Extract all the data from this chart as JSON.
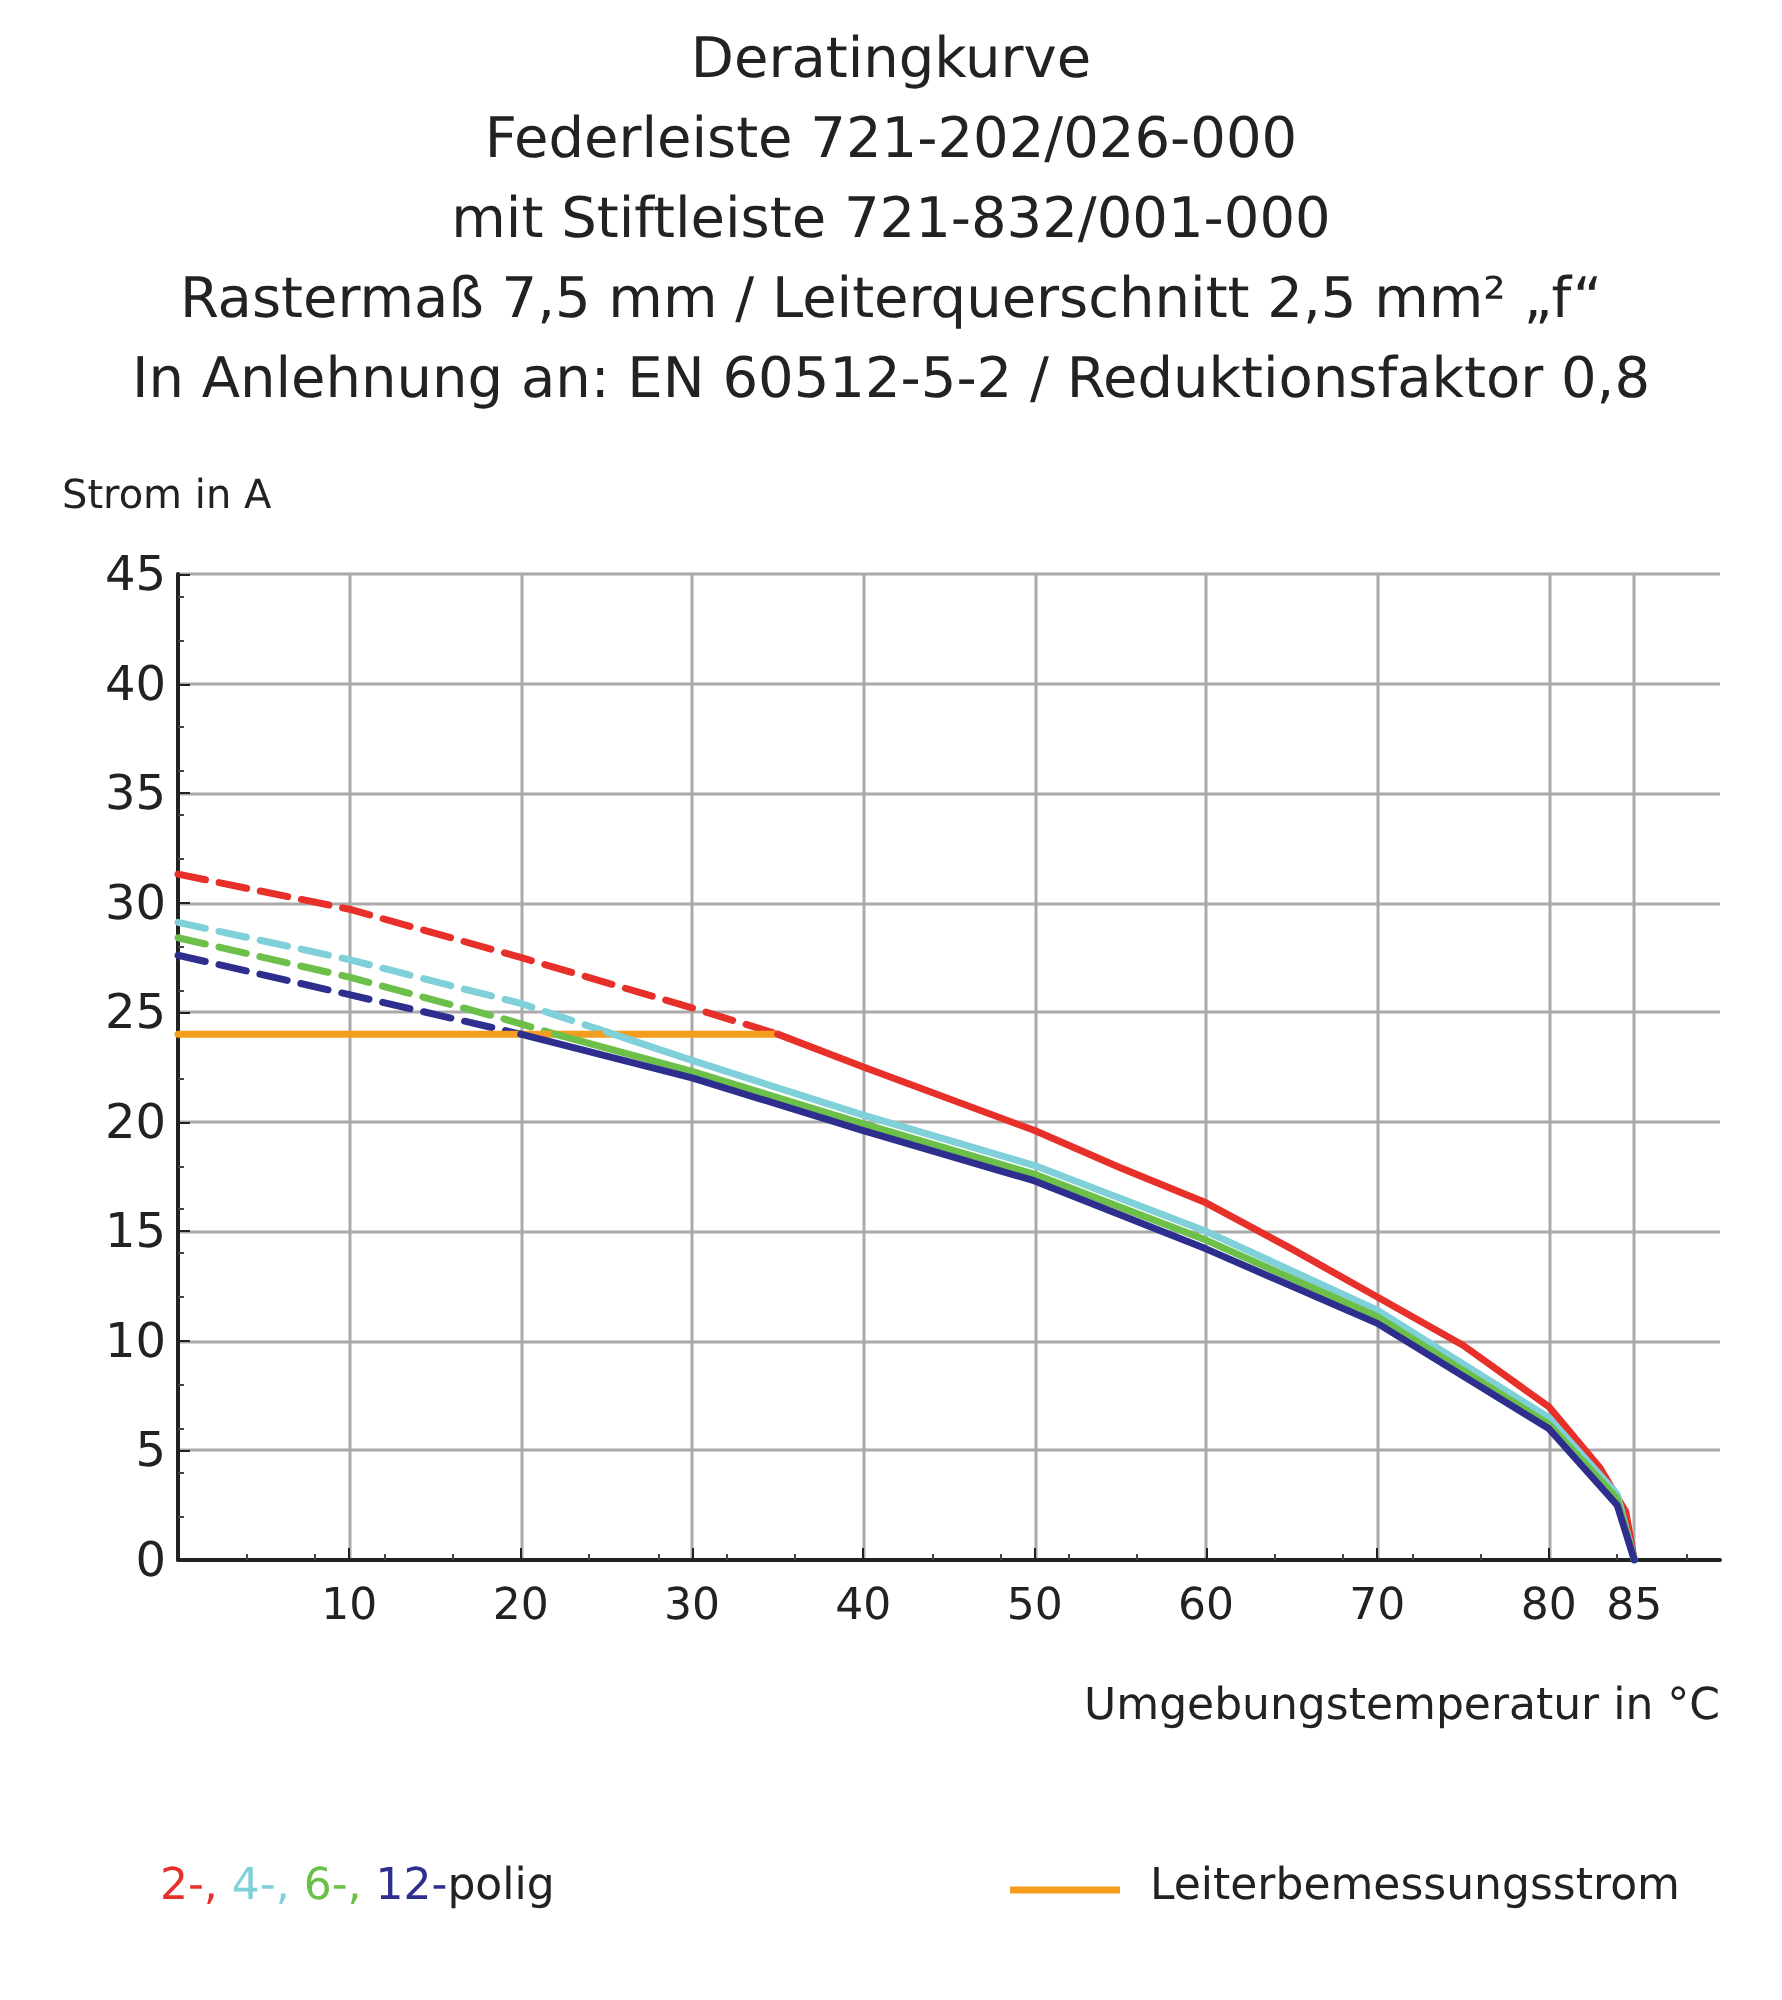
{
  "chart_data": {
    "type": "line",
    "title": "Deratingkurve\nFederleiste 721-202/026-000\nmit Stiftleiste 721-832/001-000\nRastermaß 7,5 mm / Leiterquerschnitt 2,5 mm² „f“\nIn Anlehnung an: EN 60512-5-2 / Reduktionsfaktor 0,8",
    "xlabel": "Umgebungstemperatur in °C",
    "ylabel": "Strom in A",
    "legend_title": "polig",
    "xlim": [
      0,
      90
    ],
    "xticks": [
      10,
      20,
      30,
      40,
      50,
      60,
      70,
      80,
      85
    ],
    "ylim": [
      0,
      45
    ],
    "yticks": [
      0,
      5,
      10,
      15,
      20,
      25,
      30,
      35,
      40,
      45
    ],
    "grid": true,
    "legend": "bottom",
    "series": [
      {
        "color": "#e8302a",
        "line_style": "dashed",
        "x": [
          0,
          10,
          20,
          30,
          35
        ],
        "values": [
          31.3,
          29.7,
          27.5,
          25.2,
          24.0
        ]
      },
      {
        "color": "#7fd0d8",
        "line_style": "dashed",
        "x": [
          0,
          10,
          20,
          25
        ],
        "values": [
          29.1,
          27.4,
          25.4,
          24.1
        ]
      },
      {
        "color": "#6cc04a",
        "line_style": "dashed",
        "x": [
          0,
          10,
          19,
          22
        ],
        "values": [
          28.4,
          26.6,
          24.7,
          24.0
        ]
      },
      {
        "color": "#2e2e8f",
        "line_style": "dashed",
        "x": [
          0,
          10,
          20
        ],
        "values": [
          27.6,
          25.8,
          24.0
        ]
      },
      {
        "name": "Leiterbemessungsstrom",
        "color": "#f39c1e",
        "line_style": "solid",
        "x": [
          0,
          35
        ],
        "values": [
          24,
          24
        ]
      },
      {
        "name": "2-,",
        "color": "#e8302a",
        "line_style": "solid",
        "x": [
          35,
          40,
          50,
          55,
          60,
          65,
          70,
          75,
          80,
          83,
          84.5,
          85
        ],
        "values": [
          24.0,
          22.5,
          19.6,
          17.9,
          16.3,
          14.2,
          12.0,
          9.8,
          7.0,
          4.2,
          2.2,
          0
        ]
      },
      {
        "name": "4-,",
        "color": "#7fd0d8",
        "line_style": "solid",
        "x": [
          25,
          30,
          40,
          50,
          60,
          70,
          80,
          84,
          85
        ],
        "values": [
          24.1,
          22.8,
          20.3,
          18.0,
          15.0,
          11.4,
          6.5,
          3.0,
          0
        ]
      },
      {
        "name": "6-,",
        "color": "#6cc04a",
        "line_style": "solid",
        "x": [
          22,
          30,
          40,
          50,
          60,
          70,
          80,
          84,
          85
        ],
        "values": [
          24.0,
          22.3,
          19.9,
          17.6,
          14.6,
          11.1,
          6.2,
          2.8,
          0
        ]
      },
      {
        "name": "12-",
        "color": "#2e2e8f",
        "line_style": "solid",
        "x": [
          20,
          30,
          40,
          50,
          60,
          70,
          80,
          84,
          85
        ],
        "values": [
          24.0,
          22.0,
          19.6,
          17.3,
          14.2,
          10.8,
          6.0,
          2.5,
          0
        ]
      }
    ]
  }
}
